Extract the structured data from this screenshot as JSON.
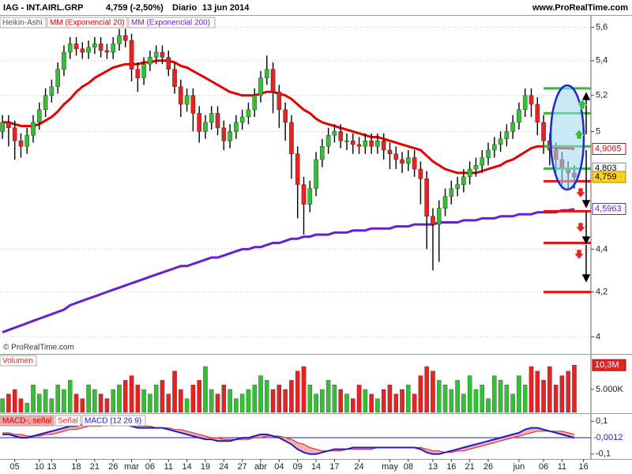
{
  "chart_data": [
    {
      "type": "candlestick",
      "title": "IAG - INT.AIRL.GRP",
      "subtitle": "4,759 (-2,50%)",
      "period": "Diario",
      "date": "13 jun 2014",
      "source": "www.ProRealTime.com",
      "watermark": "© ProRealTime.com",
      "style_name": "Heikin-Ashi",
      "up_color": "#33c133",
      "down_color": "#e62323",
      "log_scale": true,
      "grid": true,
      "xlim": [
        -0.4,
        95.7
      ],
      "ylim": [
        3.93,
        5.67
      ],
      "yticks": [
        {
          "value": 5.6,
          "label": "5,6"
        },
        {
          "value": 5.4,
          "label": "5,4"
        },
        {
          "value": 5.2,
          "label": "5,2"
        },
        5,
        {
          "value": 4.4,
          "label": "4,4"
        },
        {
          "value": 4.2,
          "label": "4,2"
        },
        4
      ],
      "xticks": [
        {
          "value": 2,
          "label": "05"
        },
        {
          "value": 6,
          "label": "10"
        },
        {
          "value": 8,
          "label": "13"
        },
        {
          "value": 12,
          "label": "18"
        },
        {
          "value": 15,
          "label": "21"
        },
        {
          "value": 18,
          "label": "26"
        },
        {
          "value": 21,
          "label": "mar"
        },
        {
          "value": 24,
          "label": "06"
        },
        {
          "value": 27,
          "label": "11"
        },
        {
          "value": 30,
          "label": "14"
        },
        {
          "value": 33,
          "label": "19"
        },
        {
          "value": 36,
          "label": "24"
        },
        {
          "value": 39,
          "label": "27"
        },
        {
          "value": 42,
          "label": "abr"
        },
        {
          "value": 45,
          "label": "04"
        },
        {
          "value": 48,
          "label": "09"
        },
        {
          "value": 51,
          "label": "14"
        },
        {
          "value": 54,
          "label": "17"
        },
        {
          "value": 58,
          "label": "24"
        },
        {
          "value": 63,
          "label": "may"
        },
        {
          "value": 66,
          "label": "08"
        },
        {
          "value": 70,
          "label": "13"
        },
        {
          "value": 73,
          "label": "16"
        },
        {
          "value": 76,
          "label": "21"
        },
        {
          "value": 79,
          "label": "26"
        },
        {
          "value": 84,
          "label": "jun"
        },
        {
          "value": 88,
          "label": "06"
        },
        {
          "value": 91,
          "label": "11"
        },
        {
          "value": 94.5,
          "label": "16"
        }
      ],
      "ohlc": {
        "open": [
          5.0,
          5.05,
          5.02,
          4.95,
          4.92,
          4.98,
          5.05,
          5.12,
          5.2,
          5.25,
          5.35,
          5.45,
          5.5,
          5.47,
          5.45,
          5.48,
          5.5,
          5.46,
          5.45,
          5.5,
          5.55,
          5.52,
          5.35,
          5.3,
          5.38,
          5.42,
          5.45,
          5.42,
          5.35,
          5.25,
          5.15,
          5.2,
          5.1,
          5.0,
          5.05,
          5.1,
          5.02,
          4.95,
          5.0,
          5.05,
          5.08,
          5.12,
          5.2,
          5.3,
          5.35,
          5.22,
          5.12,
          5.05,
          4.88,
          4.72,
          4.62,
          4.7,
          4.85,
          4.92,
          4.98,
          5.0,
          4.95,
          4.95,
          4.93,
          4.92,
          4.95,
          4.92,
          4.95,
          4.9,
          4.88,
          4.85,
          4.83,
          4.86,
          4.8,
          4.75,
          4.56,
          4.52,
          4.6,
          4.66,
          4.7,
          4.72,
          4.76,
          4.8,
          4.82,
          4.86,
          4.9,
          4.93,
          4.96,
          5.0,
          5.05,
          5.12,
          5.2,
          5.15,
          5.05,
          4.95,
          4.9,
          4.85,
          4.8,
          4.78
        ],
        "high": [
          5.09,
          5.09,
          5.06,
          4.99,
          5.02,
          5.09,
          5.16,
          5.24,
          5.29,
          5.39,
          5.49,
          5.54,
          5.54,
          5.51,
          5.52,
          5.54,
          5.54,
          5.5,
          5.54,
          5.59,
          5.59,
          5.56,
          5.39,
          5.42,
          5.46,
          5.49,
          5.49,
          5.46,
          5.39,
          5.29,
          5.24,
          5.24,
          5.14,
          5.09,
          5.14,
          5.14,
          5.06,
          5.04,
          5.09,
          5.12,
          5.16,
          5.24,
          5.34,
          5.43,
          5.39,
          5.26,
          5.16,
          5.09,
          4.92,
          4.76,
          4.74,
          4.89,
          4.96,
          5.02,
          5.04,
          5.04,
          4.99,
          4.99,
          4.97,
          4.99,
          4.99,
          4.99,
          4.99,
          4.94,
          4.92,
          4.89,
          4.9,
          4.9,
          4.84,
          4.79,
          4.6,
          4.64,
          4.7,
          4.74,
          4.76,
          4.8,
          4.84,
          4.86,
          4.9,
          4.94,
          4.97,
          5.0,
          5.04,
          5.09,
          5.16,
          5.24,
          5.24,
          5.19,
          5.09,
          4.99,
          4.94,
          4.89,
          4.84,
          4.82
        ],
        "low": [
          4.96,
          4.92,
          4.85,
          4.86,
          4.88,
          4.94,
          5.01,
          5.08,
          5.16,
          5.21,
          5.31,
          5.41,
          5.43,
          5.41,
          5.41,
          5.44,
          5.42,
          5.41,
          5.41,
          5.46,
          5.48,
          5.28,
          5.22,
          5.26,
          5.34,
          5.38,
          5.38,
          5.31,
          5.21,
          5.08,
          5.11,
          5.0,
          4.94,
          4.96,
          5.01,
          4.98,
          4.9,
          4.91,
          4.96,
          5.01,
          5.04,
          5.08,
          5.16,
          5.26,
          5.1,
          5.02,
          4.95,
          4.75,
          4.55,
          4.47,
          4.58,
          4.66,
          4.81,
          4.88,
          4.94,
          4.91,
          4.9,
          4.88,
          4.88,
          4.88,
          4.88,
          4.88,
          4.85,
          4.8,
          4.8,
          4.78,
          4.79,
          4.76,
          4.62,
          4.4,
          4.3,
          4.34,
          4.56,
          4.62,
          4.66,
          4.68,
          4.72,
          4.76,
          4.78,
          4.82,
          4.86,
          4.89,
          4.92,
          4.96,
          5.01,
          5.08,
          5.08,
          4.98,
          4.88,
          4.82,
          4.78,
          4.72,
          4.7,
          4.7
        ],
        "close": [
          5.05,
          5.02,
          4.95,
          4.92,
          4.98,
          5.05,
          5.12,
          5.2,
          5.25,
          5.35,
          5.45,
          5.5,
          5.47,
          5.45,
          5.48,
          5.5,
          5.46,
          5.45,
          5.5,
          5.55,
          5.52,
          5.35,
          5.3,
          5.38,
          5.42,
          5.45,
          5.42,
          5.35,
          5.25,
          5.15,
          5.2,
          5.1,
          5.0,
          5.05,
          5.1,
          5.02,
          4.95,
          5.0,
          5.05,
          5.08,
          5.12,
          5.2,
          5.3,
          5.35,
          5.22,
          5.12,
          5.05,
          4.88,
          4.72,
          4.62,
          4.7,
          4.85,
          4.92,
          4.98,
          5.0,
          4.95,
          4.95,
          4.93,
          4.92,
          4.95,
          4.92,
          4.95,
          4.9,
          4.88,
          4.85,
          4.83,
          4.86,
          4.8,
          4.75,
          4.56,
          4.52,
          4.6,
          4.66,
          4.7,
          4.72,
          4.76,
          4.8,
          4.82,
          4.86,
          4.9,
          4.93,
          4.96,
          5.0,
          5.05,
          5.12,
          5.2,
          5.15,
          5.05,
          4.95,
          4.9,
          4.85,
          4.8,
          4.78,
          4.759
        ]
      },
      "last_label": "4,759",
      "lines": [
        {
          "name": "MM (Exponencial 20)",
          "color": "#e60000",
          "value_label": "4,9065",
          "values": [
            5.05,
            5.05,
            5.04,
            5.03,
            5.03,
            5.03,
            5.04,
            5.06,
            5.08,
            5.11,
            5.15,
            5.18,
            5.22,
            5.25,
            5.27,
            5.3,
            5.32,
            5.34,
            5.36,
            5.37,
            5.38,
            5.38,
            5.38,
            5.39,
            5.39,
            5.4,
            5.4,
            5.4,
            5.39,
            5.37,
            5.36,
            5.34,
            5.32,
            5.3,
            5.28,
            5.26,
            5.24,
            5.22,
            5.21,
            5.2,
            5.2,
            5.2,
            5.21,
            5.22,
            5.22,
            5.21,
            5.2,
            5.18,
            5.15,
            5.12,
            5.1,
            5.07,
            5.05,
            5.04,
            5.03,
            5.02,
            5.01,
            5.0,
            4.99,
            4.98,
            4.97,
            4.97,
            4.96,
            4.95,
            4.94,
            4.93,
            4.92,
            4.91,
            4.9,
            4.87,
            4.84,
            4.82,
            4.8,
            4.79,
            4.78,
            4.78,
            4.78,
            4.78,
            4.79,
            4.8,
            4.81,
            4.82,
            4.84,
            4.85,
            4.87,
            4.89,
            4.91,
            4.92,
            4.92,
            4.92,
            4.91,
            4.91,
            4.91,
            4.9065
          ]
        },
        {
          "name": "MM (Exponencial 200)",
          "color": "#6a1ed2",
          "value_label": "4,5963",
          "values": [
            4.02,
            4.03,
            4.04,
            4.05,
            4.06,
            4.07,
            4.08,
            4.09,
            4.1,
            4.11,
            4.12,
            4.14,
            4.15,
            4.16,
            4.17,
            4.18,
            4.19,
            4.2,
            4.21,
            4.22,
            4.23,
            4.24,
            4.25,
            4.26,
            4.27,
            4.28,
            4.29,
            4.3,
            4.31,
            4.32,
            4.32,
            4.33,
            4.34,
            4.35,
            4.36,
            4.36,
            4.37,
            4.38,
            4.39,
            4.4,
            4.4,
            4.41,
            4.41,
            4.42,
            4.43,
            4.43,
            4.44,
            4.45,
            4.45,
            4.46,
            4.46,
            4.47,
            4.47,
            4.47,
            4.48,
            4.48,
            4.48,
            4.49,
            4.49,
            4.49,
            4.5,
            4.5,
            4.5,
            4.5,
            4.51,
            4.51,
            4.51,
            4.52,
            4.52,
            4.52,
            4.52,
            4.53,
            4.53,
            4.53,
            4.53,
            4.54,
            4.54,
            4.54,
            4.55,
            4.55,
            4.55,
            4.56,
            4.56,
            4.56,
            4.57,
            4.57,
            4.57,
            4.58,
            4.58,
            4.58,
            4.58,
            4.59,
            4.59,
            4.5963
          ]
        }
      ],
      "levels": [
        {
          "value": 5.24,
          "color": "#3cb43c"
        },
        {
          "value": 5.1,
          "color": "#3cb43c"
        },
        {
          "value": 4.92,
          "color": "#3cb43c"
        },
        {
          "value": 4.803,
          "color": "#3cb43c",
          "label": "4,803"
        },
        {
          "value": 4.737,
          "color": "#ee1111"
        },
        {
          "value": 4.585,
          "color": "#ee1111"
        },
        {
          "value": 4.43,
          "color": "#ee1111"
        },
        {
          "value": 4.2,
          "color": "#ee1111"
        }
      ]
    },
    {
      "type": "bar",
      "title": "Volumen",
      "up_color": "#33c133",
      "down_color": "#e62323",
      "ylim": [
        0,
        12.4
      ],
      "yticks": [
        {
          "value": 5,
          "label": "5.000K"
        }
      ],
      "value_label": "10,3M",
      "values": [
        3,
        4,
        5,
        3,
        2,
        6,
        4,
        5,
        3,
        6,
        5,
        7,
        4,
        3,
        6,
        5,
        4,
        3,
        5,
        6,
        7,
        8,
        6,
        5,
        4,
        6,
        7,
        4,
        9,
        5,
        3,
        6,
        7,
        10,
        5,
        4,
        6,
        5,
        3,
        4,
        5,
        6,
        8,
        7,
        5,
        6,
        5,
        7,
        9,
        10,
        6,
        4,
        5,
        7,
        6,
        5,
        4,
        3,
        6,
        5,
        4,
        3,
        5,
        6,
        4,
        5,
        6,
        4,
        8,
        10,
        9,
        7,
        6,
        5,
        7,
        4,
        8,
        5,
        6,
        3,
        8,
        7,
        6,
        4,
        8,
        6,
        10,
        9,
        7,
        10,
        6,
        8,
        9,
        10.3
      ]
    },
    {
      "type": "macd",
      "area_name": "MACD-, señal",
      "area_color": "#f2a6a6",
      "ylim": [
        -0.125,
        0.14
      ],
      "yticks": [
        {
          "value": 0.1,
          "label": "0,1"
        },
        {
          "value": -0.1,
          "label": "-0,1"
        }
      ],
      "value_label": "-0,0012",
      "series": [
        {
          "name": "Señal",
          "color": "#e03030",
          "values": [
            0.03,
            0.03,
            0.02,
            0.02,
            0.01,
            0.01,
            0.01,
            0.02,
            0.02,
            0.03,
            0.04,
            0.05,
            0.05,
            0.06,
            0.07,
            0.07,
            0.07,
            0.08,
            0.08,
            0.08,
            0.08,
            0.08,
            0.07,
            0.07,
            0.07,
            0.06,
            0.06,
            0.06,
            0.05,
            0.05,
            0.04,
            0.03,
            0.02,
            0.01,
            0.0,
            0.0,
            -0.01,
            -0.01,
            -0.01,
            -0.01,
            -0.01,
            0.0,
            0.0,
            0.01,
            0.01,
            0.01,
            0.0,
            -0.01,
            -0.03,
            -0.04,
            -0.06,
            -0.07,
            -0.08,
            -0.08,
            -0.08,
            -0.08,
            -0.07,
            -0.07,
            -0.07,
            -0.07,
            -0.07,
            -0.06,
            -0.06,
            -0.06,
            -0.06,
            -0.06,
            -0.06,
            -0.06,
            -0.06,
            -0.07,
            -0.08,
            -0.08,
            -0.09,
            -0.09,
            -0.08,
            -0.08,
            -0.07,
            -0.06,
            -0.05,
            -0.04,
            -0.03,
            -0.02,
            -0.01,
            0.0,
            0.01,
            0.02,
            0.03,
            0.04,
            0.04,
            0.04,
            0.04,
            0.04,
            0.03,
            0.02
          ]
        },
        {
          "name": "MACD (12 26 9)",
          "color": "#1c1cc8",
          "values": [
            0.02,
            0.02,
            0.01,
            0.0,
            0.0,
            0.01,
            0.02,
            0.03,
            0.04,
            0.05,
            0.06,
            0.07,
            0.07,
            0.08,
            0.08,
            0.08,
            0.08,
            0.08,
            0.08,
            0.08,
            0.08,
            0.07,
            0.06,
            0.06,
            0.06,
            0.06,
            0.06,
            0.05,
            0.04,
            0.03,
            0.02,
            0.01,
            0.0,
            -0.01,
            -0.01,
            -0.02,
            -0.02,
            -0.02,
            -0.01,
            0.0,
            0.0,
            0.01,
            0.02,
            0.02,
            0.01,
            0.0,
            -0.02,
            -0.04,
            -0.07,
            -0.09,
            -0.1,
            -0.1,
            -0.09,
            -0.08,
            -0.07,
            -0.07,
            -0.07,
            -0.06,
            -0.06,
            -0.06,
            -0.06,
            -0.06,
            -0.06,
            -0.06,
            -0.06,
            -0.06,
            -0.06,
            -0.06,
            -0.07,
            -0.09,
            -0.1,
            -0.1,
            -0.09,
            -0.08,
            -0.07,
            -0.06,
            -0.05,
            -0.04,
            -0.03,
            -0.02,
            -0.01,
            0.0,
            0.01,
            0.02,
            0.03,
            0.05,
            0.06,
            0.06,
            0.05,
            0.04,
            0.03,
            0.02,
            0.01,
            -0.0012
          ]
        }
      ]
    }
  ]
}
